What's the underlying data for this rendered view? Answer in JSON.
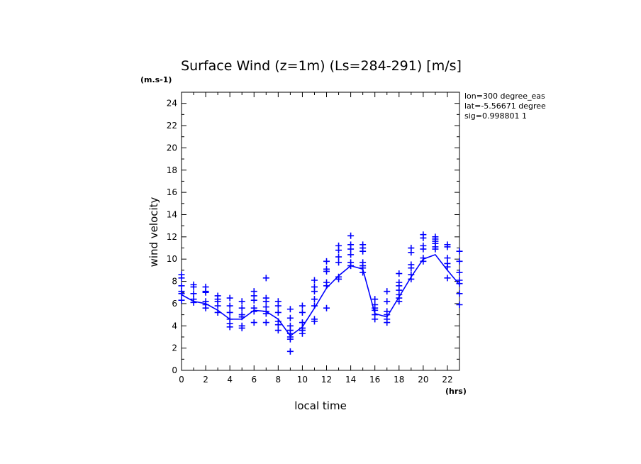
{
  "chart_data": {
    "type": "scatter",
    "title": "Surface Wind (z=1m) (Ls=284-291) [m/s]",
    "ylabel": "wind velocity",
    "xlabel": "local time",
    "yunit": "(m.s-1)",
    "xunit": "(hrs)",
    "annotations": [
      "lon=300 degree_eas",
      "lat=-5.56671 degree",
      "sig=0.998801 1"
    ],
    "xlim": [
      0,
      23
    ],
    "ylim": [
      0,
      25
    ],
    "xticks": [
      0,
      2,
      4,
      6,
      8,
      10,
      12,
      14,
      16,
      18,
      20,
      22
    ],
    "yticks": [
      0,
      2,
      4,
      6,
      8,
      10,
      12,
      14,
      16,
      18,
      20,
      22,
      24
    ],
    "color": "#0000ff",
    "series": [
      {
        "kind": "scatter",
        "points": [
          [
            0,
            8.6
          ],
          [
            0,
            8.3
          ],
          [
            0,
            7.6
          ],
          [
            0,
            7.1
          ],
          [
            0,
            6.9
          ],
          [
            0,
            6.3
          ],
          [
            1,
            7.7
          ],
          [
            1,
            7.5
          ],
          [
            1,
            6.9
          ],
          [
            1,
            6.4
          ],
          [
            1,
            6.1
          ],
          [
            2,
            7.5
          ],
          [
            2,
            7.1
          ],
          [
            2,
            7.0
          ],
          [
            2,
            6.2
          ],
          [
            2,
            5.9
          ],
          [
            2,
            5.6
          ],
          [
            3,
            6.7
          ],
          [
            3,
            6.4
          ],
          [
            3,
            6.2
          ],
          [
            3,
            5.8
          ],
          [
            3,
            5.2
          ],
          [
            4,
            6.5
          ],
          [
            4,
            5.8
          ],
          [
            4,
            5.2
          ],
          [
            4,
            4.6
          ],
          [
            4,
            4.2
          ],
          [
            4,
            3.9
          ],
          [
            5,
            6.2
          ],
          [
            5,
            5.6
          ],
          [
            5,
            5.0
          ],
          [
            5,
            4.8
          ],
          [
            5,
            4.0
          ],
          [
            5,
            3.8
          ],
          [
            6,
            7.1
          ],
          [
            6,
            6.7
          ],
          [
            6,
            6.3
          ],
          [
            6,
            5.6
          ],
          [
            6,
            5.3
          ],
          [
            6,
            4.3
          ],
          [
            7,
            8.3
          ],
          [
            7,
            6.5
          ],
          [
            7,
            6.2
          ],
          [
            7,
            5.7
          ],
          [
            7,
            5.3
          ],
          [
            7,
            5.1
          ],
          [
            7,
            4.3
          ],
          [
            8,
            6.2
          ],
          [
            8,
            5.8
          ],
          [
            8,
            5.2
          ],
          [
            8,
            4.4
          ],
          [
            8,
            4.1
          ],
          [
            8,
            3.6
          ],
          [
            9,
            5.5
          ],
          [
            9,
            4.7
          ],
          [
            9,
            4.0
          ],
          [
            9,
            3.6
          ],
          [
            9,
            3.3
          ],
          [
            9,
            3.0
          ],
          [
            9,
            2.8
          ],
          [
            9,
            1.7
          ],
          [
            10,
            5.8
          ],
          [
            10,
            5.2
          ],
          [
            10,
            4.3
          ],
          [
            10,
            3.8
          ],
          [
            10,
            3.6
          ],
          [
            10,
            3.3
          ],
          [
            11,
            8.1
          ],
          [
            11,
            7.5
          ],
          [
            11,
            7.1
          ],
          [
            11,
            6.4
          ],
          [
            11,
            5.8
          ],
          [
            11,
            4.6
          ],
          [
            11,
            4.4
          ],
          [
            12,
            9.8
          ],
          [
            12,
            9.1
          ],
          [
            12,
            8.9
          ],
          [
            12,
            7.9
          ],
          [
            12,
            7.6
          ],
          [
            12,
            5.6
          ],
          [
            13,
            11.2
          ],
          [
            13,
            10.8
          ],
          [
            13,
            10.2
          ],
          [
            13,
            9.7
          ],
          [
            13,
            8.4
          ],
          [
            13,
            8.2
          ],
          [
            14,
            12.1
          ],
          [
            14,
            11.3
          ],
          [
            14,
            10.9
          ],
          [
            14,
            10.4
          ],
          [
            14,
            9.7
          ],
          [
            14,
            9.4
          ],
          [
            15,
            11.3
          ],
          [
            15,
            11.0
          ],
          [
            15,
            10.7
          ],
          [
            15,
            9.7
          ],
          [
            15,
            9.4
          ],
          [
            15,
            9.2
          ],
          [
            15,
            8.8
          ],
          [
            16,
            6.4
          ],
          [
            16,
            5.9
          ],
          [
            16,
            5.6
          ],
          [
            16,
            5.4
          ],
          [
            16,
            5.0
          ],
          [
            16,
            4.6
          ],
          [
            17,
            7.1
          ],
          [
            17,
            6.2
          ],
          [
            17,
            5.3
          ],
          [
            17,
            5.0
          ],
          [
            17,
            4.6
          ],
          [
            17,
            4.3
          ],
          [
            18,
            8.7
          ],
          [
            18,
            7.9
          ],
          [
            18,
            7.6
          ],
          [
            18,
            7.2
          ],
          [
            18,
            6.8
          ],
          [
            18,
            6.5
          ],
          [
            18,
            6.2
          ],
          [
            19,
            11.0
          ],
          [
            19,
            10.6
          ],
          [
            19,
            9.5
          ],
          [
            19,
            9.2
          ],
          [
            19,
            8.6
          ],
          [
            19,
            8.2
          ],
          [
            20,
            12.2
          ],
          [
            20,
            11.9
          ],
          [
            20,
            11.2
          ],
          [
            20,
            10.9
          ],
          [
            20,
            10.1
          ],
          [
            20,
            9.8
          ],
          [
            21,
            12.0
          ],
          [
            21,
            11.8
          ],
          [
            21,
            11.6
          ],
          [
            21,
            11.4
          ],
          [
            21,
            11.1
          ],
          [
            21,
            10.9
          ],
          [
            22,
            11.3
          ],
          [
            22,
            11.1
          ],
          [
            22,
            10.1
          ],
          [
            22,
            9.6
          ],
          [
            22,
            9.3
          ],
          [
            22,
            8.3
          ],
          [
            23,
            10.7
          ],
          [
            23,
            9.8
          ],
          [
            23,
            8.8
          ],
          [
            23,
            8.1
          ],
          [
            23,
            7.8
          ],
          [
            23,
            6.9
          ],
          [
            23,
            5.9
          ]
        ]
      },
      {
        "kind": "line",
        "x": [
          0,
          1,
          2,
          3,
          4,
          5,
          6,
          7,
          8,
          9,
          10,
          11,
          12,
          13,
          14,
          15,
          16,
          17,
          18,
          19,
          20,
          21,
          22,
          23
        ],
        "values": [
          6.8,
          6.2,
          6.0,
          5.4,
          4.6,
          4.6,
          5.4,
          5.3,
          4.6,
          3.1,
          3.9,
          5.6,
          7.4,
          8.5,
          9.4,
          9.1,
          5.1,
          4.8,
          6.6,
          8.4,
          10.0,
          10.4,
          9.0,
          7.7
        ]
      }
    ]
  }
}
